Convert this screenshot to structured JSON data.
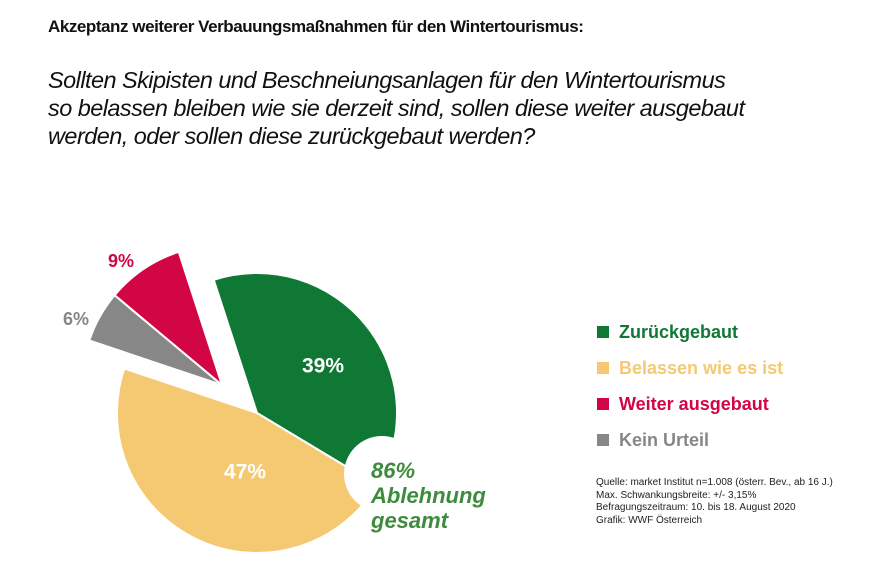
{
  "title": "Akzeptanz weiterer Verbauungsmaßnahmen für den Wintertourismus:",
  "question": [
    "Sollten Skipisten und Beschneiungsanlagen für den Wintertourismus",
    "so belassen bleiben wie sie derzeit sind, sollen diese weiter ausgebaut",
    "werden, oder sollen diese zurückgebaut werden?"
  ],
  "chart_data": {
    "type": "pie",
    "slices": [
      {
        "name": "Zurückgebaut",
        "value": 39,
        "label": "39%",
        "color": "#0e7834",
        "label_color": "#ffffff",
        "exploded": false
      },
      {
        "name": "Belassen wie es ist",
        "value": 47,
        "label": "47%",
        "color": "#f5c972",
        "label_color": "#ffffff",
        "exploded": false
      },
      {
        "name": "Kein Urteil",
        "value": 6,
        "label": "6%",
        "color": "#878787",
        "label_color": "#878787",
        "exploded": true
      },
      {
        "name": "Weiter ausgebaut",
        "value": 9,
        "label": "9%",
        "color": "#d20545",
        "label_color": "#d20545",
        "exploded": true
      }
    ],
    "legend_placement": "right",
    "annotation": [
      "86%",
      "Ablehnung",
      "gesamt"
    ],
    "annotation_color": "#3d8b3d"
  },
  "legend": [
    {
      "label": "Zurückgebaut",
      "color": "#0e7834"
    },
    {
      "label": "Belassen wie es ist",
      "color": "#f5c972"
    },
    {
      "label": "Weiter ausgebaut",
      "color": "#d20545"
    },
    {
      "label": "Kein Urteil",
      "color": "#878787"
    }
  ],
  "source": [
    "Quelle: market Institut n=1.008 (österr. Bev., ab 16 J.)",
    "Max. Schwankungsbreite: +/- 3,15%",
    "Befragungszeitraum: 10. bis 18. August 2020",
    "Grafik: WWF Österreich"
  ]
}
